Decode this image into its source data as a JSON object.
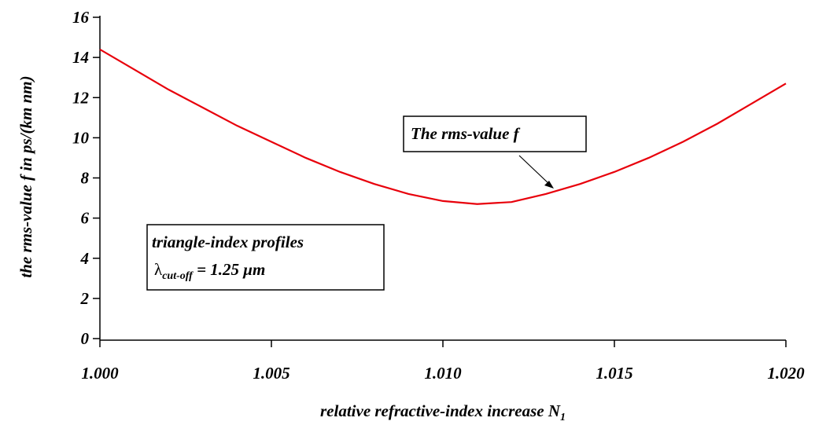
{
  "chart_data": {
    "type": "line",
    "x_label": "relative refractive-index increase N",
    "x_label_sub": "1",
    "y_label": "the rms-value f in ps/(km nm)",
    "x": [
      1.0,
      1.001,
      1.002,
      1.003,
      1.004,
      1.005,
      1.006,
      1.007,
      1.008,
      1.009,
      1.01,
      1.011,
      1.012,
      1.013,
      1.014,
      1.015,
      1.016,
      1.017,
      1.018,
      1.019,
      1.02
    ],
    "series": [
      {
        "color": "#e8000b",
        "values": [
          14.4,
          13.4,
          12.4,
          11.5,
          10.6,
          9.8,
          9.0,
          8.3,
          7.7,
          7.2,
          6.85,
          6.7,
          6.8,
          7.2,
          7.7,
          8.3,
          9.0,
          9.8,
          10.7,
          11.7,
          12.7
        ]
      }
    ],
    "xlim": [
      1.0,
      1.02
    ],
    "xticks": [
      {
        "value": 1.0,
        "label": "1.000"
      },
      {
        "value": 1.005,
        "label": "1.005"
      },
      {
        "value": 1.01,
        "label": "1.010"
      },
      {
        "value": 1.015,
        "label": "1.015"
      },
      {
        "value": 1.02,
        "label": "1.020"
      }
    ],
    "ylim": [
      0,
      16
    ],
    "yticks": [
      0,
      2,
      4,
      6,
      8,
      10,
      12,
      14,
      16
    ],
    "annotations": {
      "curve_label": "The rms-value f",
      "profile_label": "triangle-index profiles",
      "lambda": "λ",
      "lambda_sub": "cut-off",
      "lambda_value": " = 1.25 μm"
    }
  }
}
